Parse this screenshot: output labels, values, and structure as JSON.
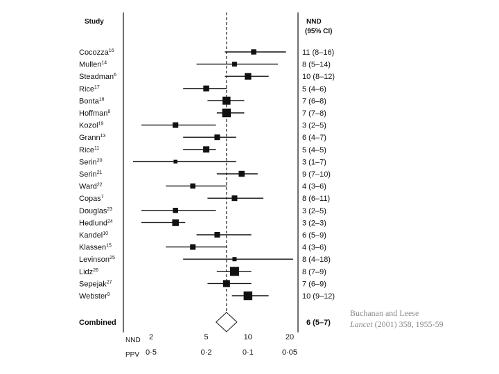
{
  "headers": {
    "study": "Study",
    "nnd_line1": "NND",
    "nnd_line2": "(95% CI)"
  },
  "citation": {
    "line1": "Buchanan and Leese",
    "journal": "Lancet",
    "rest": " (2001) 358, 1955-59"
  },
  "chart_data": {
    "type": "forest",
    "axes": [
      {
        "name": "NND",
        "scale": "log",
        "ticks": [
          2,
          5,
          10,
          20
        ],
        "tick_labels": [
          "2",
          "5",
          "10",
          "20"
        ]
      },
      {
        "name": "PPV",
        "ticks": [
          0.5,
          0.2,
          0.1,
          0.05
        ],
        "tick_labels": [
          "0·5",
          "0·2",
          "0·1",
          "0·05"
        ]
      }
    ],
    "reference_line": 7,
    "studies": [
      {
        "name": "Cocozza",
        "ref": "16",
        "nnd": 11,
        "lo": 8,
        "hi": 16,
        "ci_label": "11 (8–16)",
        "weight": 0.35
      },
      {
        "name": "Mullen",
        "ref": "14",
        "nnd": 8,
        "lo": 5,
        "hi": 14,
        "ci_label": "8 (5–14)",
        "weight": 0.3
      },
      {
        "name": "Steadman",
        "ref": "6",
        "nnd": 10,
        "lo": 8,
        "hi": 12,
        "ci_label": "10 (8–12)",
        "weight": 0.55
      },
      {
        "name": "Rice",
        "ref": "17",
        "nnd": 5,
        "lo": 4,
        "hi": 6,
        "ci_label": "5 (4–6)",
        "weight": 0.45
      },
      {
        "name": "Bonta",
        "ref": "18",
        "nnd": 7,
        "lo": 6,
        "hi": 8,
        "ci_label": "7 (6–8)",
        "weight": 0.75
      },
      {
        "name": "Hoffman",
        "ref": "8",
        "nnd": 7,
        "lo": 7,
        "hi": 8,
        "ci_label": "7 (7–8)",
        "weight": 0.85
      },
      {
        "name": "Kozol",
        "ref": "19",
        "nnd": 3,
        "lo": 2,
        "hi": 5,
        "ci_label": "3 (2–5)",
        "weight": 0.4
      },
      {
        "name": "Grann",
        "ref": "13",
        "nnd": 6,
        "lo": 4,
        "hi": 7,
        "ci_label": "6 (4–7)",
        "weight": 0.4
      },
      {
        "name": "Rice",
        "ref": "11",
        "nnd": 5,
        "lo": 4,
        "hi": 5,
        "ci_label": "5 (4–5)",
        "weight": 0.5
      },
      {
        "name": "Serin",
        "ref": "20",
        "nnd": 3,
        "lo": 1,
        "hi": 7,
        "ci_label": "3 (1–7)",
        "weight": 0.15
      },
      {
        "name": "Serin",
        "ref": "21",
        "nnd": 9,
        "lo": 7,
        "hi": 10,
        "ci_label": "9 (7–10)",
        "weight": 0.45
      },
      {
        "name": "Ward",
        "ref": "22",
        "nnd": 4,
        "lo": 3,
        "hi": 6,
        "ci_label": "4 (3–6)",
        "weight": 0.35
      },
      {
        "name": "Copas",
        "ref": "7",
        "nnd": 8,
        "lo": 6,
        "hi": 11,
        "ci_label": "8 (6–11)",
        "weight": 0.4
      },
      {
        "name": "Douglas",
        "ref": "23",
        "nnd": 3,
        "lo": 2,
        "hi": 5,
        "ci_label": "3 (2–5)",
        "weight": 0.35
      },
      {
        "name": "Hedlund",
        "ref": "24",
        "nnd": 3,
        "lo": 2,
        "hi": 3,
        "ci_label": "3 (2–3)",
        "weight": 0.55
      },
      {
        "name": "Kandel",
        "ref": "10",
        "nnd": 6,
        "lo": 5,
        "hi": 9,
        "ci_label": "6 (5–9)",
        "weight": 0.4
      },
      {
        "name": "Klassen",
        "ref": "15",
        "nnd": 4,
        "lo": 3,
        "hi": 6,
        "ci_label": "4 (3–6)",
        "weight": 0.4
      },
      {
        "name": "Levinson",
        "ref": "25",
        "nnd": 8,
        "lo": 4,
        "hi": 18,
        "ci_label": "8 (4–18)",
        "weight": 0.2
      },
      {
        "name": "Lidz",
        "ref": "26",
        "nnd": 8,
        "lo": 7,
        "hi": 9,
        "ci_label": "8 (7–9)",
        "weight": 0.9
      },
      {
        "name": "Sepejak",
        "ref": "27",
        "nnd": 7,
        "lo": 6,
        "hi": 9,
        "ci_label": "7 (6–9)",
        "weight": 0.6
      },
      {
        "name": "Webster",
        "ref": "9",
        "nnd": 10,
        "lo": 9,
        "hi": 12,
        "ci_label": "10 (9–12)",
        "weight": 0.85
      }
    ],
    "combined": {
      "name": "Combined",
      "nnd": 6,
      "lo": 5,
      "hi": 7,
      "ci_label": "6 (5–7)"
    }
  }
}
